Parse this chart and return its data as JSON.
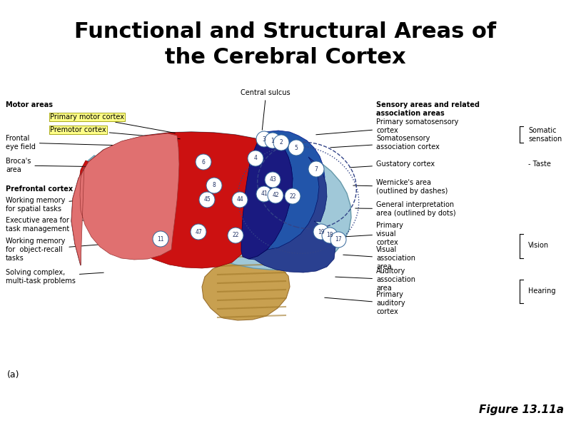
{
  "title_line1": "Functional and Structural Areas of",
  "title_line2": "the Cerebral Cortex",
  "figure_label": "Figure 13.11a",
  "panel_label": "(a)",
  "background_color": "#ffffff",
  "title_fontsize": 22,
  "title_fontweight": "bold",
  "figure_label_fontsize": 11,
  "figure_label_fontstyle": "italic",
  "panel_label_fontsize": 9,
  "title_color": "#000000",
  "brain_region_colors": {
    "primary_motor": "#cc1111",
    "prefrontal": "#e07070",
    "nav_blue": "#1a1a80",
    "mid_blue": "#2255aa",
    "light_blue": "#a0c8d8",
    "brainstem": "#c8a050"
  }
}
